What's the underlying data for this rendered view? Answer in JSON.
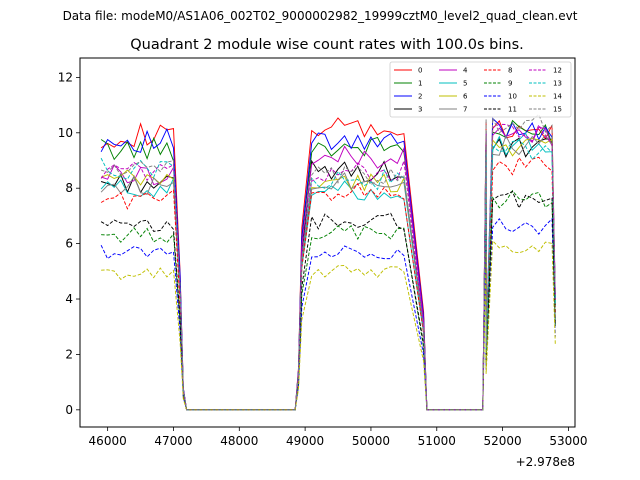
{
  "suptitle": "Data file: modeM0/AS1A06_002T02_9000002982_19999cztM0_level2_quad_clean.evt",
  "chart_data": {
    "type": "line",
    "title": "Quadrant 2 module wise count rates with 100.0s bins.",
    "xlabel": "",
    "ylabel": "",
    "x_offset_label": "+2.978e8",
    "xlim": [
      45580,
      53100
    ],
    "ylim": [
      -0.62,
      12.7
    ],
    "x_ticks": [
      46000,
      47000,
      48000,
      49000,
      50000,
      51000,
      52000,
      53000
    ],
    "y_ticks": [
      0,
      2,
      4,
      6,
      8,
      10,
      12
    ],
    "legend_location": "upper-right",
    "segments": [
      {
        "x_start": 45900,
        "on_points": 12,
        "tail_x": [
          47100,
          47150,
          47200,
          47300
        ],
        "tail_factors": [
          0.5,
          0.08,
          0.0,
          0.0
        ]
      },
      {
        "x_start": 48900,
        "lead_x": [
          48850
        ],
        "on_points": 17,
        "tail_x": [
          50800,
          50850
        ],
        "tail_factors": [
          0.35,
          0.0
        ]
      },
      {
        "x_start": 51750,
        "lead_x": [
          51700
        ],
        "on_points": 11,
        "tail_x": [],
        "tail_factors": []
      }
    ],
    "zero_range": [
      47300,
      48850
    ],
    "zero_range2": [
      50850,
      51700
    ],
    "series": [
      {
        "name": "0",
        "color": "#ff0000",
        "dash": "solid",
        "levels": [
          9.9,
          10.1,
          10.0
        ]
      },
      {
        "name": "1",
        "color": "#008000",
        "dash": "solid",
        "levels": [
          9.4,
          9.5,
          10.0
        ]
      },
      {
        "name": "2",
        "color": "#0000ff",
        "dash": "solid",
        "levels": [
          9.7,
          9.6,
          10.2
        ]
      },
      {
        "name": "3",
        "color": "#000000",
        "dash": "solid",
        "levels": [
          8.2,
          8.6,
          9.4
        ]
      },
      {
        "name": "4",
        "color": "#bf00bf",
        "dash": "solid",
        "levels": [
          8.5,
          9.1,
          9.9
        ]
      },
      {
        "name": "5",
        "color": "#00bfbf",
        "dash": "solid",
        "levels": [
          8.0,
          7.9,
          9.6
        ]
      },
      {
        "name": "6",
        "color": "#bfbf00",
        "dash": "solid",
        "levels": [
          8.3,
          8.2,
          9.6
        ]
      },
      {
        "name": "7",
        "color": "#808080",
        "dash": "solid",
        "levels": [
          8.1,
          8.3,
          9.5
        ]
      },
      {
        "name": "8",
        "color": "#ff0000",
        "dash": "dashed",
        "levels": [
          7.6,
          7.9,
          8.8
        ]
      },
      {
        "name": "9",
        "color": "#008000",
        "dash": "dashed",
        "levels": [
          6.3,
          6.4,
          7.6
        ]
      },
      {
        "name": "10",
        "color": "#0000ff",
        "dash": "dashed",
        "levels": [
          5.7,
          5.7,
          6.6
        ]
      },
      {
        "name": "11",
        "color": "#000000",
        "dash": "dashed",
        "levels": [
          6.6,
          6.8,
          7.6
        ]
      },
      {
        "name": "12",
        "color": "#bf00bf",
        "dash": "dashed",
        "levels": [
          8.6,
          8.6,
          10.0
        ]
      },
      {
        "name": "13",
        "color": "#00bfbf",
        "dash": "dashed",
        "levels": [
          8.7,
          8.3,
          9.4
        ]
      },
      {
        "name": "14",
        "color": "#bfbf00",
        "dash": "dashed",
        "levels": [
          4.9,
          5.0,
          5.9
        ]
      },
      {
        "name": "15",
        "color": "#808080",
        "dash": "dashed",
        "levels": [
          8.7,
          8.4,
          10.4
        ]
      }
    ]
  }
}
